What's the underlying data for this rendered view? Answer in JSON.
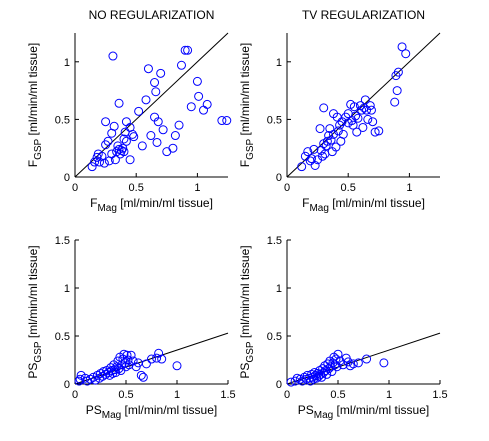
{
  "chart_data": [
    {
      "type": "scatter",
      "title": "NO REGULARIZATION",
      "xlabel": {
        "main": "F",
        "sub": "Mag",
        "rest": " [ml/min/ml tissue]"
      },
      "ylabel": {
        "main": "F",
        "sub": "GSP",
        "rest": " [ml/min/ml tissue]"
      },
      "xlim": [
        0,
        1.25
      ],
      "ylim": [
        0,
        1.25
      ],
      "xticks": [
        0,
        0.5,
        1
      ],
      "yticks": [
        0,
        0.5,
        1
      ],
      "xtick_labels": [
        "0",
        "0.5",
        "1"
      ],
      "ytick_labels": [
        "0",
        "0.5",
        "1"
      ],
      "identity_line": true,
      "marker_color": "#0000ff",
      "points": [
        [
          0.14,
          0.09
        ],
        [
          0.16,
          0.13
        ],
        [
          0.18,
          0.17
        ],
        [
          0.19,
          0.2
        ],
        [
          0.2,
          0.13
        ],
        [
          0.22,
          0.18
        ],
        [
          0.24,
          0.12
        ],
        [
          0.25,
          0.28
        ],
        [
          0.25,
          0.48
        ],
        [
          0.27,
          0.31
        ],
        [
          0.28,
          0.14
        ],
        [
          0.3,
          0.2
        ],
        [
          0.3,
          0.38
        ],
        [
          0.31,
          1.05
        ],
        [
          0.32,
          0.44
        ],
        [
          0.33,
          0.15
        ],
        [
          0.34,
          0.22
        ],
        [
          0.35,
          0.27
        ],
        [
          0.36,
          0.24
        ],
        [
          0.36,
          0.64
        ],
        [
          0.37,
          0.2
        ],
        [
          0.38,
          0.23
        ],
        [
          0.39,
          0.25
        ],
        [
          0.4,
          0.33
        ],
        [
          0.4,
          0.22
        ],
        [
          0.41,
          0.39
        ],
        [
          0.42,
          0.31
        ],
        [
          0.42,
          0.48
        ],
        [
          0.45,
          0.43
        ],
        [
          0.45,
          0.15
        ],
        [
          0.47,
          0.37
        ],
        [
          0.48,
          0.35
        ],
        [
          0.52,
          0.57
        ],
        [
          0.55,
          0.27
        ],
        [
          0.58,
          0.67
        ],
        [
          0.6,
          0.94
        ],
        [
          0.62,
          0.36
        ],
        [
          0.65,
          0.52
        ],
        [
          0.65,
          0.82
        ],
        [
          0.66,
          0.74
        ],
        [
          0.67,
          0.3
        ],
        [
          0.68,
          0.48
        ],
        [
          0.7,
          0.9
        ],
        [
          0.72,
          0.41
        ],
        [
          0.75,
          0.22
        ],
        [
          0.8,
          0.25
        ],
        [
          0.82,
          0.36
        ],
        [
          0.85,
          0.45
        ],
        [
          0.87,
          0.97
        ],
        [
          0.9,
          1.1
        ],
        [
          0.92,
          1.1
        ],
        [
          0.95,
          0.61
        ],
        [
          1.0,
          0.83
        ],
        [
          1.01,
          0.7
        ],
        [
          1.05,
          0.58
        ],
        [
          1.08,
          0.63
        ],
        [
          1.2,
          0.49
        ],
        [
          1.24,
          0.49
        ]
      ]
    },
    {
      "type": "scatter",
      "title": "TV REGULARIZATION",
      "xlabel": {
        "main": "F",
        "sub": "Mag",
        "rest": " [ml/min/ml tissue]"
      },
      "ylabel": {
        "main": "F",
        "sub": "GSP",
        "rest": " [ml/min/ml tissue]"
      },
      "xlim": [
        0,
        1.25
      ],
      "ylim": [
        0,
        1.25
      ],
      "xticks": [
        0,
        0.5,
        1
      ],
      "yticks": [
        0,
        0.5,
        1
      ],
      "xtick_labels": [
        "0",
        "0.5",
        "1"
      ],
      "ytick_labels": [
        "0",
        "0.5",
        "1"
      ],
      "identity_line": true,
      "marker_color": "#0000ff",
      "points": [
        [
          0.12,
          0.09
        ],
        [
          0.15,
          0.18
        ],
        [
          0.17,
          0.22
        ],
        [
          0.19,
          0.14
        ],
        [
          0.2,
          0.16
        ],
        [
          0.22,
          0.24
        ],
        [
          0.23,
          0.1
        ],
        [
          0.25,
          0.15
        ],
        [
          0.27,
          0.42
        ],
        [
          0.28,
          0.23
        ],
        [
          0.29,
          0.18
        ],
        [
          0.3,
          0.6
        ],
        [
          0.3,
          0.29
        ],
        [
          0.31,
          0.2
        ],
        [
          0.32,
          0.27
        ],
        [
          0.33,
          0.31
        ],
        [
          0.34,
          0.36
        ],
        [
          0.35,
          0.42
        ],
        [
          0.36,
          0.32
        ],
        [
          0.37,
          0.22
        ],
        [
          0.38,
          0.37
        ],
        [
          0.38,
          0.55
        ],
        [
          0.4,
          0.26
        ],
        [
          0.41,
          0.52
        ],
        [
          0.42,
          0.4
        ],
        [
          0.43,
          0.45
        ],
        [
          0.44,
          0.31
        ],
        [
          0.45,
          0.48
        ],
        [
          0.46,
          0.37
        ],
        [
          0.48,
          0.52
        ],
        [
          0.5,
          0.47
        ],
        [
          0.5,
          0.55
        ],
        [
          0.52,
          0.63
        ],
        [
          0.53,
          0.49
        ],
        [
          0.54,
          0.45
        ],
        [
          0.55,
          0.61
        ],
        [
          0.56,
          0.53
        ],
        [
          0.57,
          0.39
        ],
        [
          0.58,
          0.51
        ],
        [
          0.6,
          0.62
        ],
        [
          0.61,
          0.58
        ],
        [
          0.62,
          0.43
        ],
        [
          0.63,
          0.6
        ],
        [
          0.64,
          0.67
        ],
        [
          0.65,
          0.58
        ],
        [
          0.66,
          0.5
        ],
        [
          0.68,
          0.62
        ],
        [
          0.69,
          0.58
        ],
        [
          0.7,
          0.48
        ],
        [
          0.72,
          0.39
        ],
        [
          0.75,
          0.4
        ],
        [
          0.88,
          0.65
        ],
        [
          0.89,
          0.88
        ],
        [
          0.9,
          0.75
        ],
        [
          0.91,
          0.91
        ],
        [
          0.94,
          1.13
        ],
        [
          0.97,
          1.07
        ]
      ]
    },
    {
      "type": "scatter",
      "title": "",
      "xlabel": {
        "main": "PS",
        "sub": "Mag",
        "rest": " [ml/min/ml tissue]"
      },
      "ylabel": {
        "main": "PS",
        "sub": "GSP",
        "rest": " [ml/min/ml tissue]"
      },
      "xlim": [
        0,
        1.5
      ],
      "ylim": [
        0,
        1.5
      ],
      "xticks": [
        0,
        0.5,
        1,
        1.5
      ],
      "yticks": [
        0,
        0.5,
        1,
        1.5
      ],
      "xtick_labels": [
        "0",
        "0.5",
        "1",
        "1.5"
      ],
      "ytick_labels": [
        "0",
        "0.5",
        "1",
        "1.5"
      ],
      "fit_line": [
        [
          0,
          0
        ],
        [
          1.5,
          0.53
        ]
      ],
      "marker_color": "#0000ff",
      "points": [
        [
          0.04,
          0.03
        ],
        [
          0.05,
          0.05
        ],
        [
          0.06,
          0.09
        ],
        [
          0.1,
          0.06
        ],
        [
          0.12,
          0.03
        ],
        [
          0.15,
          0.05
        ],
        [
          0.18,
          0.07
        ],
        [
          0.2,
          0.04
        ],
        [
          0.22,
          0.09
        ],
        [
          0.24,
          0.06
        ],
        [
          0.25,
          0.11
        ],
        [
          0.27,
          0.08
        ],
        [
          0.28,
          0.13
        ],
        [
          0.3,
          0.1
        ],
        [
          0.31,
          0.14
        ],
        [
          0.33,
          0.12
        ],
        [
          0.34,
          0.09
        ],
        [
          0.35,
          0.17
        ],
        [
          0.36,
          0.14
        ],
        [
          0.37,
          0.11
        ],
        [
          0.38,
          0.2
        ],
        [
          0.39,
          0.15
        ],
        [
          0.4,
          0.12
        ],
        [
          0.41,
          0.18
        ],
        [
          0.42,
          0.24
        ],
        [
          0.43,
          0.16
        ],
        [
          0.44,
          0.28
        ],
        [
          0.45,
          0.14
        ],
        [
          0.46,
          0.2
        ],
        [
          0.47,
          0.26
        ],
        [
          0.48,
          0.31
        ],
        [
          0.49,
          0.22
        ],
        [
          0.5,
          0.18
        ],
        [
          0.51,
          0.3
        ],
        [
          0.52,
          0.25
        ],
        [
          0.53,
          0.2
        ],
        [
          0.55,
          0.3
        ],
        [
          0.57,
          0.24
        ],
        [
          0.6,
          0.18
        ],
        [
          0.62,
          0.22
        ],
        [
          0.65,
          0.09
        ],
        [
          0.67,
          0.07
        ],
        [
          0.7,
          0.21
        ],
        [
          0.75,
          0.26
        ],
        [
          0.8,
          0.27
        ],
        [
          0.82,
          0.32
        ],
        [
          0.85,
          0.26
        ],
        [
          1.0,
          0.19
        ]
      ]
    },
    {
      "type": "scatter",
      "title": "",
      "xlabel": {
        "main": "PS",
        "sub": "Mag",
        "rest": " [ml/min/ml tissue]"
      },
      "ylabel": {
        "main": "PS",
        "sub": "GSP",
        "rest": " [ml/min/ml tissue]"
      },
      "xlim": [
        0,
        1.5
      ],
      "ylim": [
        0,
        1.5
      ],
      "xticks": [
        0,
        0.5,
        1,
        1.5
      ],
      "yticks": [
        0,
        0.5,
        1,
        1.5
      ],
      "xtick_labels": [
        "0",
        "0.5",
        "1",
        "1.5"
      ],
      "ytick_labels": [
        "0",
        "0.5",
        "1",
        "1.5"
      ],
      "fit_line": [
        [
          0,
          0
        ],
        [
          1.5,
          0.53
        ]
      ],
      "marker_color": "#0000ff",
      "points": [
        [
          0.04,
          0.02
        ],
        [
          0.08,
          0.03
        ],
        [
          0.1,
          0.06
        ],
        [
          0.13,
          0.05
        ],
        [
          0.15,
          0.03
        ],
        [
          0.17,
          0.07
        ],
        [
          0.19,
          0.05
        ],
        [
          0.2,
          0.09
        ],
        [
          0.22,
          0.06
        ],
        [
          0.23,
          0.03
        ],
        [
          0.24,
          0.1
        ],
        [
          0.25,
          0.07
        ],
        [
          0.26,
          0.05
        ],
        [
          0.27,
          0.12
        ],
        [
          0.28,
          0.09
        ],
        [
          0.29,
          0.06
        ],
        [
          0.3,
          0.11
        ],
        [
          0.31,
          0.08
        ],
        [
          0.32,
          0.14
        ],
        [
          0.33,
          0.1
        ],
        [
          0.34,
          0.07
        ],
        [
          0.35,
          0.16
        ],
        [
          0.36,
          0.12
        ],
        [
          0.37,
          0.19
        ],
        [
          0.38,
          0.14
        ],
        [
          0.39,
          0.1
        ],
        [
          0.4,
          0.21
        ],
        [
          0.41,
          0.16
        ],
        [
          0.42,
          0.24
        ],
        [
          0.43,
          0.18
        ],
        [
          0.44,
          0.13
        ],
        [
          0.45,
          0.22
        ],
        [
          0.46,
          0.28
        ],
        [
          0.47,
          0.2
        ],
        [
          0.48,
          0.26
        ],
        [
          0.49,
          0.18
        ],
        [
          0.5,
          0.31
        ],
        [
          0.52,
          0.24
        ],
        [
          0.55,
          0.2
        ],
        [
          0.58,
          0.27
        ],
        [
          0.6,
          0.23
        ],
        [
          0.62,
          0.19
        ],
        [
          0.65,
          0.21
        ],
        [
          0.7,
          0.22
        ],
        [
          0.78,
          0.26
        ],
        [
          0.95,
          0.22
        ]
      ]
    }
  ]
}
